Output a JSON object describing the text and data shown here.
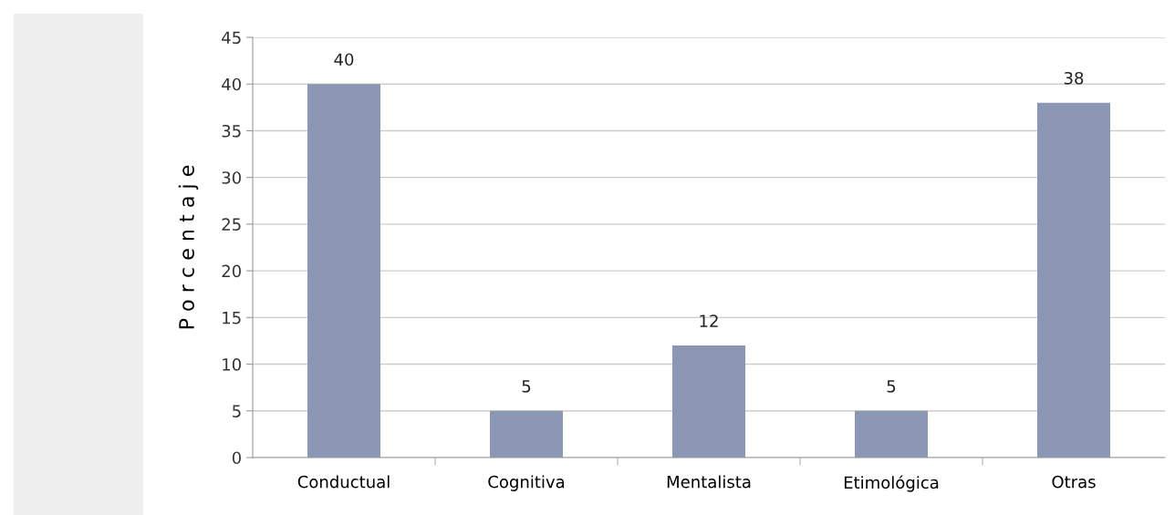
{
  "chart_data": {
    "type": "bar",
    "ylabel": "P o r c e n t a j e",
    "categories": [
      "Conductual",
      "Cognitiva",
      "Mentalista",
      "Etimológica",
      "Otras"
    ],
    "values": [
      40,
      5,
      12,
      5,
      38
    ],
    "color": "#8b97b5",
    "ylim": [
      0,
      45
    ],
    "yticks": [
      0,
      5,
      10,
      15,
      20,
      25,
      30,
      35,
      40,
      45
    ],
    "grid": "y",
    "data_labels": true,
    "legend": false
  }
}
